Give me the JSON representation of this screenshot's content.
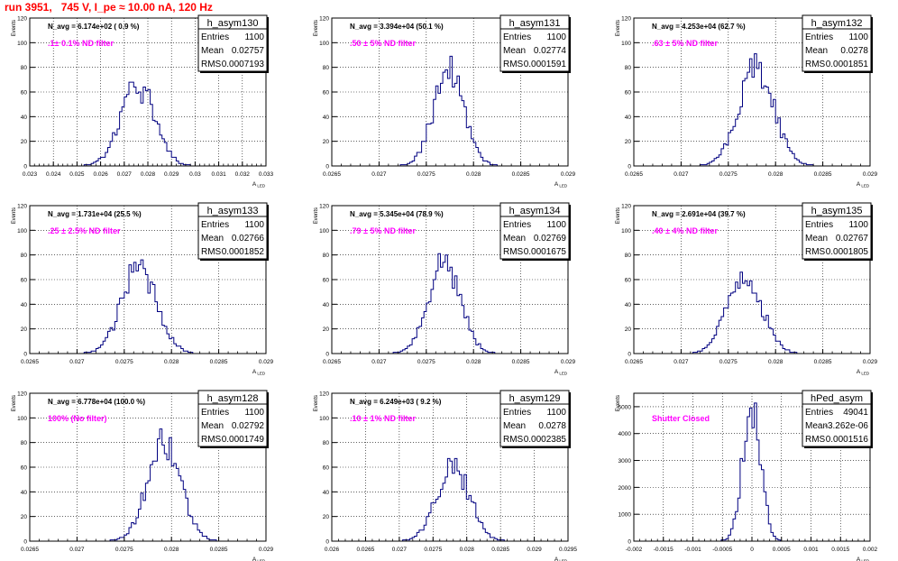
{
  "header": {
    "title": "run 3951,   745 V, I_pe ≈ 10.00 nA, 120 Hz"
  },
  "colors": {
    "title": "#ff0000",
    "hist": "#000080",
    "annotation": "#ff00ff",
    "axis": "#000000"
  },
  "chart_data": [
    {
      "type": "histogram",
      "name": "h_asym130",
      "ylabel": "Events",
      "xlabel": "A_LED",
      "navg": "N_avg = 6.174e+02 ( 0.9 %)",
      "annotation": ".1± 0.1% ND filter",
      "stats": {
        "Entries": "1100",
        "Mean": "0.02757",
        "RMS": "0.0007193"
      },
      "xlim": [
        0.023,
        0.033
      ],
      "ylim": [
        0,
        120
      ],
      "xticks": [
        "0.023",
        "0.024",
        "0.025",
        "0.026",
        "0.027",
        "0.028",
        "0.029",
        "0.03",
        "0.031",
        "0.032",
        "0.033"
      ],
      "yticks": [
        "0",
        "20",
        "40",
        "60",
        "80",
        "100",
        "120"
      ],
      "peak": {
        "mean": 0.02757,
        "sigma": 0.00072,
        "max": 65
      }
    },
    {
      "type": "histogram",
      "name": "h_asym131",
      "ylabel": "Events",
      "xlabel": "A_LED",
      "navg": "N_avg = 3.394e+04 (50.1 %)",
      "annotation": ".50 ± 5% ND filter",
      "stats": {
        "Entries": "1100",
        "Mean": "0.02774",
        "RMS": "0.0001591"
      },
      "xlim": [
        0.0265,
        0.029
      ],
      "ylim": [
        0,
        120
      ],
      "xticks": [
        "0.0265",
        "0.027",
        "0.0275",
        "0.028",
        "0.0285",
        "0.029"
      ],
      "yticks": [
        "0",
        "20",
        "40",
        "60",
        "80",
        "100",
        "120"
      ],
      "peak": {
        "mean": 0.02774,
        "sigma": 0.000159,
        "max": 80
      }
    },
    {
      "type": "histogram",
      "name": "h_asym132",
      "ylabel": "Events",
      "xlabel": "A_LED",
      "navg": "N_avg = 4.253e+04 (62.7 %)",
      "annotation": ".63 ± 5% ND filter",
      "stats": {
        "Entries": "1100",
        "Mean": "0.0278",
        "RMS": "0.0001851"
      },
      "xlim": [
        0.0265,
        0.029
      ],
      "ylim": [
        0,
        120
      ],
      "xticks": [
        "0.0265",
        "0.027",
        "0.0275",
        "0.028",
        "0.0285",
        "0.029"
      ],
      "yticks": [
        "0",
        "20",
        "40",
        "60",
        "80",
        "100",
        "120"
      ],
      "peak": {
        "mean": 0.0278,
        "sigma": 0.000185,
        "max": 80
      }
    },
    {
      "type": "histogram",
      "name": "h_asym133",
      "ylabel": "Events",
      "xlabel": "A_LED",
      "navg": "N_avg = 1.731e+04 (25.5 %)",
      "annotation": ".25 ± 2.5% ND filter",
      "stats": {
        "Entries": "1100",
        "Mean": "0.02766",
        "RMS": "0.0001852"
      },
      "xlim": [
        0.0265,
        0.029
      ],
      "ylim": [
        0,
        120
      ],
      "xticks": [
        "0.0265",
        "0.027",
        "0.0275",
        "0.028",
        "0.0285",
        "0.029"
      ],
      "yticks": [
        "0",
        "20",
        "40",
        "60",
        "80",
        "100",
        "120"
      ],
      "peak": {
        "mean": 0.02766,
        "sigma": 0.000185,
        "max": 70
      }
    },
    {
      "type": "histogram",
      "name": "h_asym134",
      "ylabel": "Events",
      "xlabel": "A_LED",
      "navg": "N_avg = 5.345e+04 (78.9 %)",
      "annotation": ".79 ± 5% ND filter",
      "stats": {
        "Entries": "1100",
        "Mean": "0.02769",
        "RMS": "0.0001675"
      },
      "xlim": [
        0.0265,
        0.029
      ],
      "ylim": [
        0,
        120
      ],
      "xticks": [
        "0.0265",
        "0.027",
        "0.0275",
        "0.028",
        "0.0285",
        "0.029"
      ],
      "yticks": [
        "0",
        "20",
        "40",
        "60",
        "80",
        "100",
        "120"
      ],
      "peak": {
        "mean": 0.02769,
        "sigma": 0.000168,
        "max": 75
      }
    },
    {
      "type": "histogram",
      "name": "h_asym135",
      "ylabel": "Events",
      "xlabel": "A_LED",
      "navg": "N_avg = 2.691e+04 (39.7 %)",
      "annotation": ".40 ± 4% ND filter",
      "stats": {
        "Entries": "1100",
        "Mean": "0.02767",
        "RMS": "0.0001805"
      },
      "xlim": [
        0.0265,
        0.029
      ],
      "ylim": [
        0,
        120
      ],
      "xticks": [
        "0.0265",
        "0.027",
        "0.0275",
        "0.028",
        "0.0285",
        "0.029"
      ],
      "yticks": [
        "0",
        "20",
        "40",
        "60",
        "80",
        "100",
        "120"
      ],
      "peak": {
        "mean": 0.02767,
        "sigma": 0.00018,
        "max": 65
      }
    },
    {
      "type": "histogram",
      "name": "h_asym128",
      "ylabel": "Events",
      "xlabel": "A_LED",
      "navg": "N_avg = 6.778e+04 (100.0 %)",
      "annotation": "100% (No filter)",
      "stats": {
        "Entries": "1100",
        "Mean": "0.02792",
        "RMS": "0.0001749"
      },
      "xlim": [
        0.0265,
        0.029
      ],
      "ylim": [
        0,
        120
      ],
      "xticks": [
        "0.0265",
        "0.027",
        "0.0275",
        "0.028",
        "0.0285",
        "0.029"
      ],
      "yticks": [
        "0",
        "20",
        "40",
        "60",
        "80",
        "100",
        "120"
      ],
      "peak": {
        "mean": 0.02792,
        "sigma": 0.000175,
        "max": 82
      }
    },
    {
      "type": "histogram",
      "name": "h_asym129",
      "ylabel": "Events",
      "xlabel": "A_LED",
      "navg": "N_avg = 6.249e+03 ( 9.2 %)",
      "annotation": ".10 ± 1% ND filter",
      "stats": {
        "Entries": "1100",
        "Mean": "0.0278",
        "RMS": "0.0002385"
      },
      "xlim": [
        0.026,
        0.0295
      ],
      "ylim": [
        0,
        120
      ],
      "xticks": [
        "0.026",
        "0.0265",
        "0.027",
        "0.0275",
        "0.028",
        "0.0285",
        "0.029",
        "0.0295"
      ],
      "yticks": [
        "0",
        "20",
        "40",
        "60",
        "80",
        "100",
        "120"
      ],
      "peak": {
        "mean": 0.0278,
        "sigma": 0.00024,
        "max": 62
      }
    },
    {
      "type": "histogram",
      "name": "hPed_asym",
      "ylabel": "Events",
      "xlabel": "A_LED",
      "navg": "",
      "annotation": "Shutter Closed",
      "stats": {
        "Entries": "49041",
        "Mean": "-3.262e-06",
        "RMS": "0.0001516"
      },
      "xlim": [
        -0.002,
        0.002
      ],
      "ylim": [
        0,
        5500
      ],
      "xticks": [
        "-0.002",
        "-0.0015",
        "-0.001",
        "-0.0005",
        "0",
        "0.0005",
        "0.001",
        "0.0015",
        "0.002"
      ],
      "yticks": [
        "0",
        "1000",
        "2000",
        "3000",
        "4000",
        "5000"
      ],
      "peak": {
        "mean": -3.3e-06,
        "sigma": 0.00015,
        "max": 5200
      }
    }
  ]
}
